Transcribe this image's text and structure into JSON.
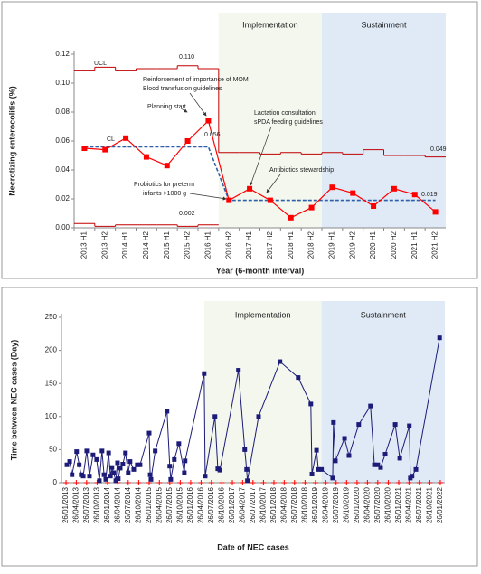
{
  "chart_data": [
    {
      "type": "line",
      "y_label": "Necrotizing enterocolitis (%)",
      "x_label": "Year (6-month interval)",
      "categories": [
        "2013 H1",
        "2013 H2",
        "2014 H1",
        "2014 H2",
        "2015 H1",
        "2015 H2",
        "2016 H1",
        "2016 H2",
        "2017 H1",
        "2017 H2",
        "2018 H1",
        "2018 H2",
        "2019 H1",
        "2019 H2",
        "2020 H1",
        "2020 H2",
        "2021 H1",
        "2021 H2"
      ],
      "series": [
        {
          "color": "#ff0000",
          "marker": "square",
          "style": "solid",
          "values": [
            0.055,
            0.054,
            0.062,
            0.049,
            0.043,
            0.06,
            0.074,
            0.019,
            0.027,
            0.019,
            0.007,
            0.014,
            0.028,
            0.024,
            0.015,
            0.027,
            0.023,
            0.011
          ]
        },
        {
          "color": "#c00000",
          "style": "step",
          "values": [
            0.109,
            0.111,
            0.109,
            0.11,
            0.11,
            0.112,
            0.11,
            0.052,
            0.052,
            0.051,
            0.052,
            0.051,
            0.052,
            0.051,
            0.054,
            0.05,
            0.05,
            0.049
          ]
        },
        {
          "color": "#c00000",
          "style": "step",
          "values": [
            0.003,
            0.001,
            0.002,
            0.002,
            0.002,
            0.001,
            0.002,
            null,
            null,
            null,
            null,
            null,
            null,
            null,
            null,
            null,
            null,
            null
          ]
        },
        {
          "color": "#2e5fa8",
          "style": "dashed",
          "values": [
            0.056,
            0.056,
            0.056,
            0.056,
            0.056,
            0.056,
            0.056,
            0.019,
            0.019,
            0.019,
            0.019,
            0.019,
            0.019,
            0.019,
            0.019,
            0.019,
            0.019,
            0.019
          ]
        }
      ],
      "ylim": [
        0,
        0.12
      ],
      "yticks": [
        {
          "value": 0,
          "label": "0.00"
        },
        0.02,
        0.04,
        0.06,
        0.08,
        {
          "value": 0.1,
          "label": "0.10"
        },
        0.12
      ],
      "phases": [
        {
          "label": "Implementation",
          "start": "2016 H2",
          "end": "2018 H2",
          "color": "#f3f7ee"
        },
        {
          "label": "Sustainment",
          "start": "2019 H1",
          "end": "2021 H2",
          "color": "#dfeaf6"
        }
      ],
      "annotations": [
        "UCL",
        "0.110",
        "CL",
        "0.056",
        "0.002",
        "0.049",
        "0.019",
        "Reinforcement of importance of MOM",
        "Blood transfusion guidelines",
        "Planning start",
        "Lactation consultation",
        "sPDA feeding guidelines",
        "Antibiotics stewardship",
        "Probiotics for preterm",
        "infants >1000 g"
      ]
    },
    {
      "type": "line",
      "y_label": "Time between NEC cases (Day)",
      "x_label": "Date of NEC cases",
      "color": "#1c1c78",
      "x": [
        "2013-02-03",
        "2013-02-27",
        "2013-03-20",
        "2013-04-29",
        "2013-05-22",
        "2013-06-08",
        "2013-06-26",
        "2013-07-27",
        "2013-08-20",
        "2013-09-20",
        "2013-10-22",
        "2013-11-15",
        "2013-12-08",
        "2013-12-26",
        "2014-01-10",
        "2014-02-04",
        "2014-02-20",
        "2014-03-05",
        "2014-03-20",
        "2014-04-08",
        "2014-04-23",
        "2014-04-30",
        "2014-05-17",
        "2014-06-09",
        "2014-07-02",
        "2014-07-26",
        "2014-08-11",
        "2014-09-13",
        "2014-10-14",
        "2014-11-07",
        "2015-01-26",
        "2015-02-04",
        "2015-02-11",
        "2015-03-20",
        "2015-07-02",
        "2015-07-26",
        "2015-08-04",
        "2015-09-04",
        "2015-10-14",
        "2015-12-01",
        "2015-12-08",
        "2016-05-23",
        "2016-06-01",
        "2016-08-26",
        "2016-09-20",
        "2016-10-08",
        "2017-03-20",
        "2017-05-15",
        "2017-05-31",
        "2017-06-07",
        "2017-09-13",
        "2018-03-20",
        "2018-08-27",
        "2018-12-16",
        "2018-12-26",
        "2019-02-04",
        "2019-02-20",
        "2019-03-20",
        "2019-06-26",
        "2019-07-03",
        "2019-07-20",
        "2019-10-08",
        "2019-11-16",
        "2020-02-10",
        "2020-05-23",
        "2020-06-26",
        "2020-07-26",
        "2020-08-20",
        "2020-09-29",
        "2020-12-26",
        "2021-02-04",
        "2021-04-29",
        "2021-05-08",
        "2021-05-23",
        "2021-06-26",
        "2022-01-20"
      ],
      "values": [
        27,
        32,
        12,
        47,
        27,
        12,
        10,
        48,
        10,
        42,
        35,
        3,
        48,
        12,
        5,
        45,
        10,
        23,
        15,
        3,
        30,
        6,
        22,
        28,
        45,
        15,
        32,
        20,
        27,
        27,
        75,
        12,
        5,
        48,
        108,
        25,
        5,
        35,
        59,
        15,
        33,
        165,
        10,
        100,
        21,
        19,
        170,
        50,
        20,
        3,
        100,
        183,
        159,
        119,
        13,
        49,
        20,
        20,
        7,
        91,
        33,
        67,
        41,
        88,
        116,
        27,
        27,
        23,
        43,
        88,
        37,
        86,
        7,
        10,
        20,
        219
      ],
      "xlim": [
        "2012-12-17",
        "2022-03-07"
      ],
      "xticks": [
        {
          "value": "2013-01-26",
          "label": "26/01/2013"
        },
        {
          "value": "2013-04-26",
          "label": "26/04/2013"
        },
        {
          "value": "2013-07-26",
          "label": "26/07/2013"
        },
        {
          "value": "2013-10-26",
          "label": "26/10/2013"
        },
        {
          "value": "2014-01-26",
          "label": "26/01/2014"
        },
        {
          "value": "2014-04-26",
          "label": "26/04/2014"
        },
        {
          "value": "2014-07-26",
          "label": "26/07/2014"
        },
        {
          "value": "2014-10-26",
          "label": "26/10/2014"
        },
        {
          "value": "2015-01-26",
          "label": "26/01/2015"
        },
        {
          "value": "2015-04-26",
          "label": "26/04/2015"
        },
        {
          "value": "2015-07-26",
          "label": "26/07/2015"
        },
        {
          "value": "2015-10-26",
          "label": "26/10/2015"
        },
        {
          "value": "2016-01-26",
          "label": "26/01/2016"
        },
        {
          "value": "2016-04-26",
          "label": "26/04/2016"
        },
        {
          "value": "2016-07-26",
          "label": "26/07/2016"
        },
        {
          "value": "2016-10-26",
          "label": "26/10/2016"
        },
        {
          "value": "2017-01-26",
          "label": "26/01/2017"
        },
        {
          "value": "2017-04-26",
          "label": "26/04/2017"
        },
        {
          "value": "2017-07-26",
          "label": "26/07/2017"
        },
        {
          "value": "2017-10-26",
          "label": "26/10/2017"
        },
        {
          "value": "2018-01-26",
          "label": "26/01/2018"
        },
        {
          "value": "2018-04-26",
          "label": "26/04/2018"
        },
        {
          "value": "2018-07-26",
          "label": "26/07/2018"
        },
        {
          "value": "2018-10-26",
          "label": "26/10/2018"
        },
        {
          "value": "2019-01-26",
          "label": "26/01/2019"
        },
        {
          "value": "2019-04-26",
          "label": "26/04/2019"
        },
        {
          "value": "2019-07-26",
          "label": "26/07/2019"
        },
        {
          "value": "2019-10-26",
          "label": "26/10/2019"
        },
        {
          "value": "2020-01-26",
          "label": "26/01/2020"
        },
        {
          "value": "2020-04-26",
          "label": "26/04/2020"
        },
        {
          "value": "2020-07-26",
          "label": "26/07/2020"
        },
        {
          "value": "2020-10-26",
          "label": "26/10/2020"
        },
        {
          "value": "2021-01-26",
          "label": "26/01/2021"
        },
        {
          "value": "2021-04-26",
          "label": "26/04/2021"
        },
        {
          "value": "2021-07-26",
          "label": "26/07/2021"
        },
        {
          "value": "2021-10-26",
          "label": "26/10/2021"
        },
        {
          "value": "2022-01-26",
          "label": "26/01/2022"
        }
      ],
      "xtick_color": "#ff0000",
      "ylim": [
        0,
        250
      ],
      "yticks": [
        0,
        50,
        100,
        150,
        200,
        250
      ],
      "phases": [
        {
          "label": "Implementation",
          "start": "2016-05-23",
          "end": "2019-03-20",
          "color": "#f3f7ee"
        },
        {
          "label": "Sustainment",
          "start": "2019-03-20",
          "end": "2022-03-07",
          "color": "#dfeaf6"
        }
      ]
    }
  ]
}
